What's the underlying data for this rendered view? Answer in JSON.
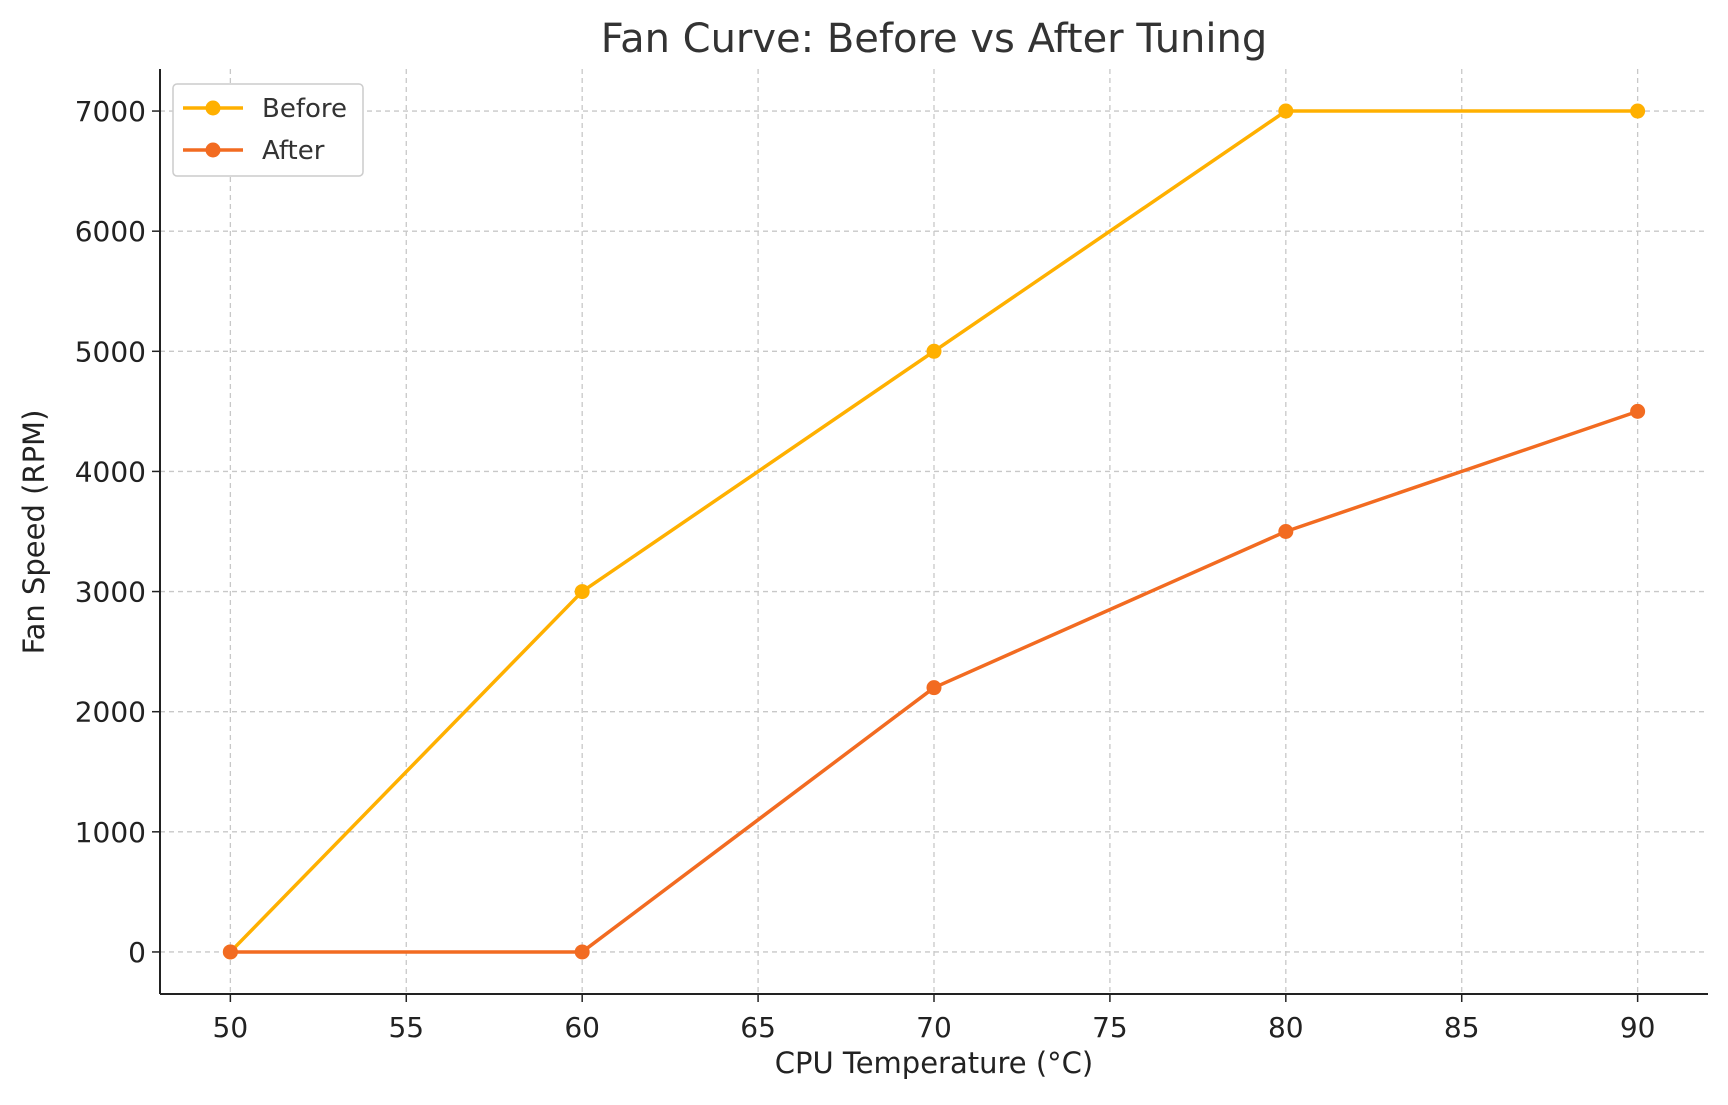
{
  "chart_data": {
    "type": "line",
    "title": "Fan Curve: Before vs After Tuning",
    "xlabel": "CPU Temperature (°C)",
    "ylabel": "Fan Speed (RPM)",
    "x": [
      50,
      60,
      70,
      80,
      90
    ],
    "xlim": [
      48,
      92
    ],
    "ylim": [
      -350,
      7350
    ],
    "xticks": [
      50,
      55,
      60,
      65,
      70,
      75,
      80,
      85,
      90
    ],
    "yticks": [
      0,
      1000,
      2000,
      3000,
      4000,
      5000,
      6000,
      7000
    ],
    "grid": true,
    "legend_position": "top-left",
    "series": [
      {
        "name": "Before",
        "color": "#FFB000",
        "marker": "circle",
        "values": [
          0,
          3000,
          5000,
          7000,
          7000
        ]
      },
      {
        "name": "After",
        "color": "#F26B21",
        "marker": "circle",
        "values": [
          0,
          0,
          2200,
          3500,
          4500
        ]
      }
    ]
  }
}
